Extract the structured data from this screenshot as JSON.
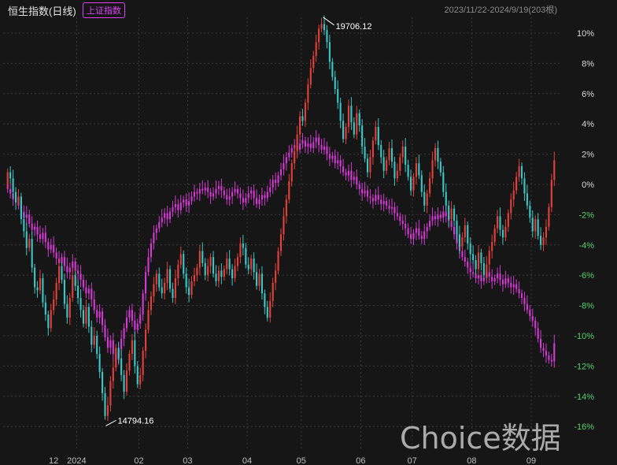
{
  "header": {
    "title": "恒生指数(日线)",
    "badge": "上证指数",
    "range": "2023/11/22-2024/9/19(203根)"
  },
  "watermark": "Choice数据",
  "colors": {
    "background": "#161616",
    "up": "#e2413b",
    "down": "#3bc5c5",
    "compare": "#d23ad2",
    "grid": "#3a3a3a",
    "axis_positive": "#d8d8d8",
    "axis_negative": "#55d06a"
  },
  "chart_data": {
    "type": "candlestick",
    "title": "恒生指数(日线)",
    "compare_series": "上证指数",
    "x_tick_labels": [
      "12",
      "2024",
      "02",
      "03",
      "04",
      "05",
      "06",
      "07",
      "08",
      "09"
    ],
    "y_tick_labels": [
      "10%",
      "8%",
      "6%",
      "4%",
      "2%",
      "0%",
      "-2%",
      "-4%",
      "-6%",
      "-8%",
      "-10%",
      "-12%",
      "-14%",
      "-16%"
    ],
    "y_range_percent": [
      -17,
      11
    ],
    "annotations": [
      {
        "label": "19706.12",
        "kind": "high",
        "x": "2024-05-20"
      },
      {
        "label": "14794.16",
        "kind": "low",
        "x": "2024-01-22"
      }
    ],
    "hsi_percent": [
      {
        "m": "2023-11",
        "v": [
          0.8,
          0.4,
          -0.5,
          -1.2,
          -0.8,
          -2.3,
          -3.1,
          -4.2,
          -3.6,
          -5.5,
          -6.8,
          -7.0,
          -6.2,
          -7.8,
          -8.6,
          -9.5,
          -8.3,
          -7.6,
          -6.5,
          -5.4,
          -6.3,
          -7.9,
          -8.8,
          -7.5,
          -6.0,
          -6.7
        ]
      },
      {
        "m": "2024-01",
        "v": [
          -7.5,
          -8.3,
          -9.2,
          -8.1,
          -9.4,
          -10.6,
          -10.0,
          -11.2,
          -12.4,
          -13.8,
          -15.3,
          -14.6,
          -13.0,
          -12.1,
          -10.8,
          -11.5,
          -12.6,
          -13.7,
          -12.3,
          -11.2,
          -10.3,
          -12.0,
          -13.2
        ]
      },
      {
        "m": "2024-02",
        "v": [
          -12.6,
          -11.0,
          -9.6,
          -8.3,
          -7.4,
          -6.6,
          -5.9,
          -6.8,
          -7.2,
          -6.5,
          -5.6,
          -6.9,
          -7.5,
          -6.2,
          -5.3,
          -4.6,
          -5.9,
          -6.8
        ]
      },
      {
        "m": "2024-03",
        "v": [
          -7.3,
          -6.4,
          -6.0,
          -5.5,
          -4.4,
          -5.2,
          -6.0,
          -5.4,
          -4.8,
          -5.9,
          -6.4,
          -5.7,
          -6.1,
          -5.6,
          -4.9,
          -5.6,
          -6.2,
          -5.4,
          -4.8,
          -3.9,
          -4.2,
          -5.3
        ]
      },
      {
        "m": "2024-04",
        "v": [
          -5.6,
          -4.9,
          -5.8,
          -6.7,
          -5.9,
          -7.2,
          -8.1,
          -8.8,
          -7.7,
          -6.5,
          -5.7,
          -4.4,
          -3.3,
          -2.1,
          -1.0,
          0.2,
          1.4,
          2.2,
          3.3,
          4.5
        ]
      },
      {
        "m": "2024-05",
        "v": [
          4.2,
          5.4,
          6.6,
          7.7,
          8.5,
          9.4,
          10.3,
          10.6,
          10.2,
          9.4,
          8.1,
          7.1,
          6.3,
          5.4,
          4.2,
          3.0,
          3.8,
          5.2,
          4.1,
          3.3,
          4.7,
          3.9
        ]
      },
      {
        "m": "2024-06",
        "v": [
          2.5,
          1.7,
          0.8,
          1.8,
          2.9,
          3.8,
          2.6,
          1.8,
          0.9,
          1.6,
          2.4,
          1.5,
          0.4,
          0.9,
          1.8,
          2.5,
          1.3,
          0.5,
          -0.4
        ]
      },
      {
        "m": "2024-07",
        "v": [
          0.5,
          1.4,
          0.6,
          -0.5,
          -1.4,
          -0.6,
          0.4,
          1.6,
          2.4,
          1.5,
          0.8,
          -0.5,
          -1.4,
          -2.3,
          -1.6,
          -2.4,
          -3.3,
          -4.1,
          -3.5,
          -2.7,
          -3.9,
          -4.6
        ]
      },
      {
        "m": "2024-08",
        "v": [
          -5.0,
          -5.6,
          -4.5,
          -5.2,
          -6.0,
          -5.3,
          -4.4,
          -3.8,
          -2.9,
          -2.1,
          -3.0,
          -3.5,
          -2.8,
          -1.9,
          -1.0,
          -0.4,
          0.5,
          1.2,
          0.4,
          -0.6,
          -1.4,
          -2.2
        ]
      },
      {
        "m": "2024-09",
        "v": [
          -3.1,
          -2.3,
          -3.4,
          -4.0,
          -3.5,
          -2.8,
          -1.5,
          0.3,
          1.6
        ]
      }
    ],
    "sse_percent": [
      {
        "m": "2023-11",
        "v": [
          -0.3,
          -0.6,
          -1.0,
          -0.9,
          -1.4,
          -1.8,
          -2.2,
          -2.0,
          -2.6,
          -3.0,
          -2.8,
          -3.3,
          -3.6,
          -3.2,
          -3.8,
          -4.3,
          -4.0,
          -4.5,
          -4.9,
          -5.2,
          -4.8,
          -5.4,
          -5.8,
          -5.5,
          -5.1,
          -5.7
        ]
      },
      {
        "m": "2024-01",
        "v": [
          -5.9,
          -6.3,
          -6.8,
          -7.2,
          -6.9,
          -7.6,
          -8.3,
          -8.8,
          -8.4,
          -9.3,
          -10.1,
          -10.8,
          -10.3,
          -11.2,
          -11.6,
          -10.9,
          -10.2,
          -9.5,
          -8.8,
          -8.3,
          -9.0,
          -9.6,
          -9.2
        ]
      },
      {
        "m": "2024-02",
        "v": [
          -8.6,
          -7.2,
          -5.8,
          -4.8,
          -3.9,
          -3.2,
          -2.9,
          -2.5,
          -2.2,
          -1.9,
          -2.3,
          -1.8,
          -1.5,
          -1.3,
          -1.7,
          -1.2,
          -1.0,
          -1.4
        ]
      },
      {
        "m": "2024-03",
        "v": [
          -1.1,
          -0.8,
          -0.5,
          -0.6,
          -0.3,
          -0.4,
          -0.2,
          -0.5,
          -0.8,
          -0.6,
          -0.3,
          -0.1,
          -0.4,
          -0.7,
          -1.0,
          -0.8,
          -0.5,
          -0.3,
          -0.6,
          -0.9,
          -1.2,
          -0.9
        ]
      },
      {
        "m": "2024-04",
        "v": [
          -0.6,
          -0.4,
          -0.9,
          -1.3,
          -1.0,
          -0.7,
          -0.9,
          -0.5,
          -0.2,
          0.3,
          0.1,
          0.6,
          1.0,
          1.4,
          1.8,
          2.1,
          2.4,
          2.6,
          2.3,
          2.7
        ]
      },
      {
        "m": "2024-05",
        "v": [
          2.9,
          2.5,
          2.7,
          2.4,
          2.8,
          3.1,
          2.6,
          2.3,
          2.5,
          2.0,
          1.7,
          1.9,
          1.4,
          1.6,
          1.2,
          0.8,
          0.6,
          0.9,
          0.3,
          0.5,
          0.0,
          -0.3
        ]
      },
      {
        "m": "2024-06",
        "v": [
          -0.6,
          -0.4,
          -0.8,
          -0.9,
          -1.1,
          -0.7,
          -1.0,
          -1.3,
          -1.1,
          -1.4,
          -1.6,
          -1.5,
          -1.9,
          -2.1,
          -2.4,
          -2.6,
          -2.9,
          -3.3,
          -3.6
        ]
      },
      {
        "m": "2024-07",
        "v": [
          -3.2,
          -2.9,
          -3.4,
          -3.6,
          -3.1,
          -2.8,
          -2.4,
          -2.1,
          -2.3,
          -2.0,
          -2.2,
          -1.8,
          -2.1,
          -2.4,
          -2.8,
          -3.3,
          -3.9,
          -4.4,
          -4.8,
          -5.1,
          -5.5,
          -5.8
        ]
      },
      {
        "m": "2024-08",
        "v": [
          -5.9,
          -6.2,
          -6.0,
          -6.4,
          -6.2,
          -5.8,
          -6.1,
          -6.4,
          -6.2,
          -5.9,
          -6.3,
          -6.6,
          -6.2,
          -6.5,
          -6.8,
          -6.6,
          -6.9,
          -7.2,
          -7.5,
          -7.9,
          -8.3,
          -8.7
        ]
      },
      {
        "m": "2024-09",
        "v": [
          -9.0,
          -9.5,
          -10.2,
          -10.8,
          -11.0,
          -11.3,
          -11.6,
          -11.7,
          -10.5
        ]
      }
    ]
  }
}
